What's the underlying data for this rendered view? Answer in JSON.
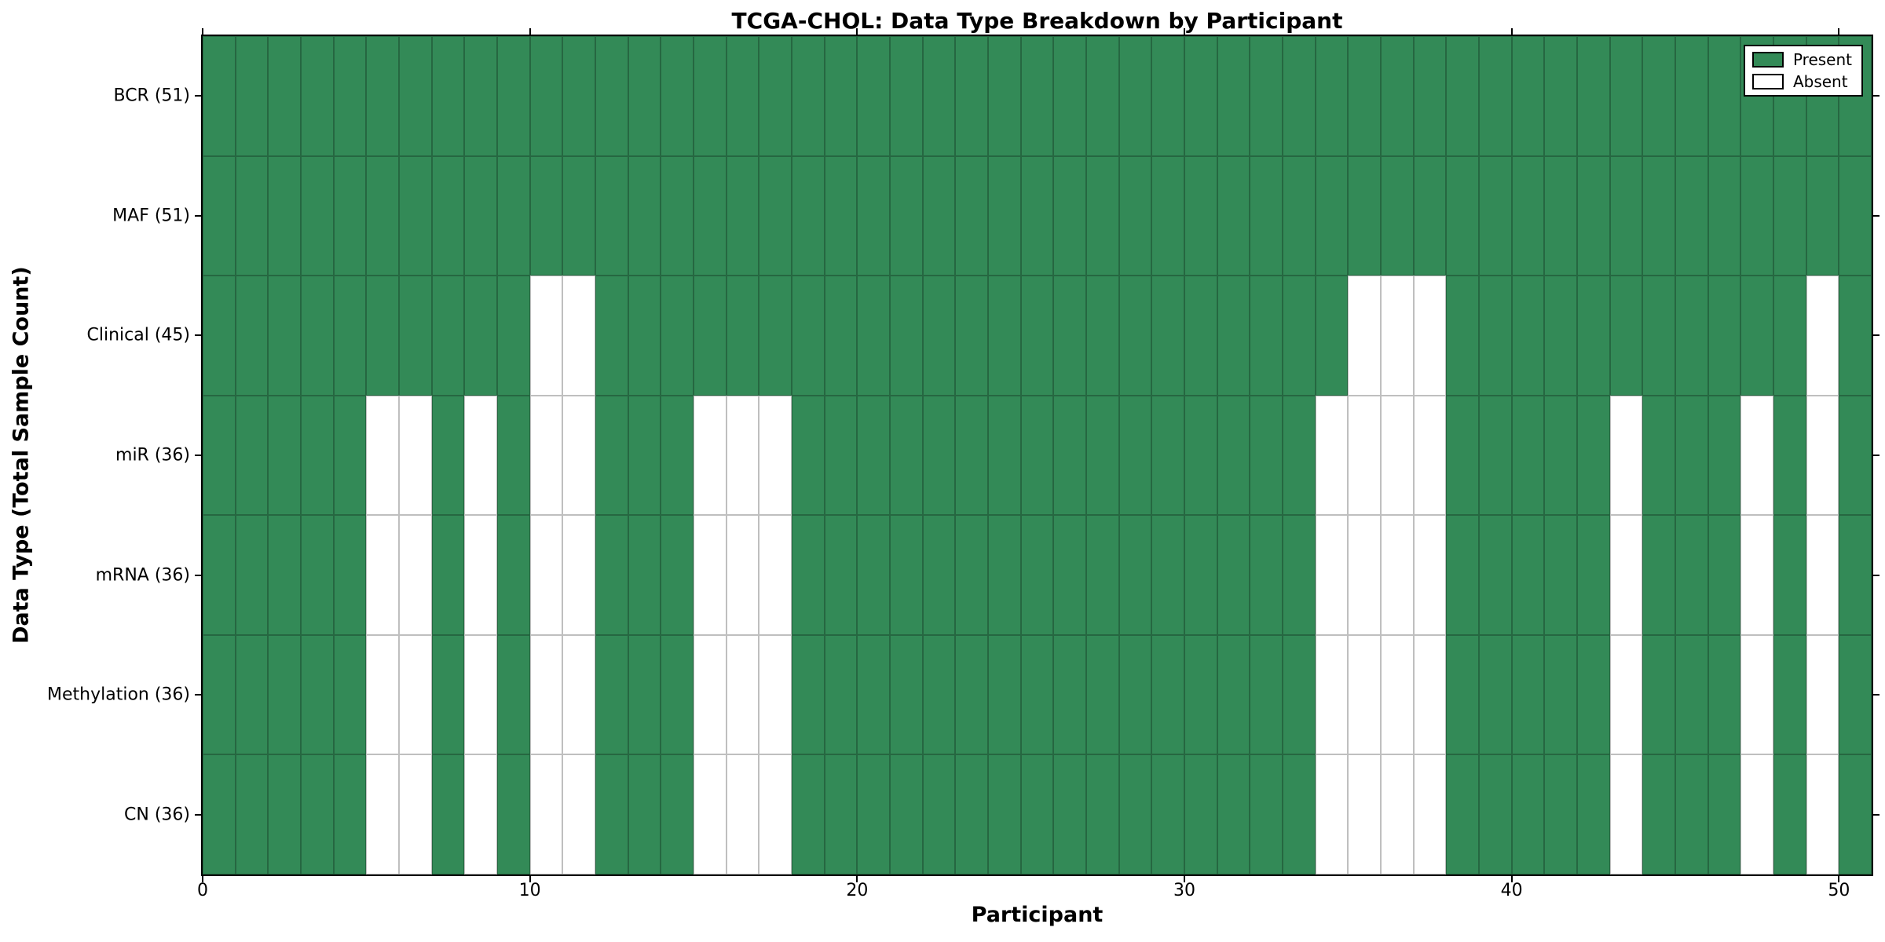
{
  "title": "TCGA-CHOL: Data Type Breakdown by Participant",
  "chart_data": {
    "type": "heatmap",
    "title": "TCGA-CHOL: Data Type Breakdown by Participant",
    "xlabel": "Participant",
    "ylabel": "Data Type (Total Sample Count)",
    "x_ticks": [
      0,
      10,
      20,
      30,
      40,
      50
    ],
    "x_range": [
      0,
      51
    ],
    "n_participants": 51,
    "grid": true,
    "legend_position": "upper right",
    "rows": [
      {
        "key": "bcr",
        "label": "BCR (51)",
        "total": 51,
        "absent": []
      },
      {
        "key": "maf",
        "label": "MAF (51)",
        "total": 51,
        "absent": []
      },
      {
        "key": "clinical",
        "label": "Clinical (45)",
        "total": 45,
        "absent": [
          10,
          11,
          35,
          36,
          37,
          49
        ]
      },
      {
        "key": "mir",
        "label": "miR (36)",
        "total": 36,
        "absent": [
          5,
          6,
          8,
          10,
          11,
          15,
          16,
          17,
          34,
          35,
          36,
          37,
          43,
          47,
          49
        ]
      },
      {
        "key": "mrna",
        "label": "mRNA (36)",
        "total": 36,
        "absent": [
          5,
          6,
          8,
          10,
          11,
          15,
          16,
          17,
          34,
          35,
          36,
          37,
          43,
          47,
          49
        ]
      },
      {
        "key": "methylation",
        "label": "Methylation (36)",
        "total": 36,
        "absent": [
          5,
          6,
          8,
          10,
          11,
          15,
          16,
          17,
          34,
          35,
          36,
          37,
          43,
          47,
          49
        ]
      },
      {
        "key": "cn",
        "label": "CN (36)",
        "total": 36,
        "absent": [
          5,
          6,
          8,
          10,
          11,
          15,
          16,
          17,
          34,
          35,
          36,
          37,
          43,
          47,
          49
        ]
      }
    ],
    "legend": [
      {
        "key": "present",
        "label": "Present",
        "color": "#338a57"
      },
      {
        "key": "absent",
        "label": "Absent",
        "color": "#ffffff"
      }
    ],
    "colors": {
      "present": "#338a57",
      "absent": "#ffffff",
      "edge": "rgba(0,0,0,0.25)",
      "spine": "#000000"
    }
  }
}
